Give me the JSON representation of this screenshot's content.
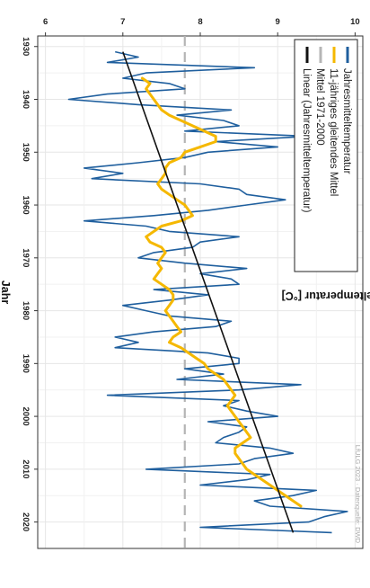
{
  "chart_data": {
    "type": "line",
    "orientation": "rotated-90-clockwise",
    "xlabel": "Jahr",
    "ylabel": "Jahresmitteltemperatur [°C]",
    "source_note": "LfULG 2023 · Datenquelle: DWD",
    "xlim": [
      1928,
      2025
    ],
    "ylim": [
      5.9,
      10.1
    ],
    "x_ticks": [
      1930,
      1940,
      1950,
      1960,
      1970,
      1980,
      1990,
      2000,
      2010,
      2020
    ],
    "y_ticks": [
      6,
      7,
      8,
      9,
      10
    ],
    "grid": true,
    "legend_placement": "top-left",
    "colors": {
      "annual": "#1f5f9e",
      "moving_avg": "#f5b800",
      "reference": "#b5b5b5",
      "trend": "#111111"
    },
    "legend": [
      {
        "key": "annual",
        "label": "Jahresmitteltemperatur"
      },
      {
        "key": "moving_avg",
        "label": "11-jähriges gleitendes Mittel"
      },
      {
        "key": "reference",
        "label": "Mittel 1971-2000"
      },
      {
        "key": "trend",
        "label": "Linear (Jahresmitteltemperatur)"
      }
    ],
    "series_annual": {
      "x": [
        1931,
        1932,
        1933,
        1934,
        1935,
        1936,
        1937,
        1938,
        1939,
        1940,
        1941,
        1942,
        1943,
        1944,
        1945,
        1946,
        1947,
        1948,
        1949,
        1950,
        1951,
        1952,
        1953,
        1954,
        1955,
        1956,
        1957,
        1958,
        1959,
        1960,
        1961,
        1962,
        1963,
        1964,
        1965,
        1966,
        1967,
        1968,
        1969,
        1970,
        1971,
        1972,
        1973,
        1974,
        1975,
        1976,
        1977,
        1978,
        1979,
        1980,
        1981,
        1982,
        1983,
        1984,
        1985,
        1986,
        1987,
        1988,
        1989,
        1990,
        1991,
        1992,
        1993,
        1994,
        1995,
        1996,
        1997,
        1998,
        1999,
        2000,
        2001,
        2002,
        2003,
        2004,
        2005,
        2006,
        2007,
        2008,
        2009,
        2010,
        2011,
        2012,
        2013,
        2014,
        2015,
        2016,
        2017,
        2018,
        2019,
        2020,
        2021,
        2022
      ],
      "values": [
        6.9,
        7.2,
        6.8,
        8.7,
        7.3,
        7.0,
        7.6,
        7.8,
        6.8,
        6.3,
        7.2,
        8.4,
        7.7,
        8.3,
        8.5,
        7.8,
        9.4,
        8.2,
        9.0,
        8.1,
        7.8,
        7.2,
        6.5,
        7.0,
        6.6,
        8.0,
        8.5,
        8.6,
        9.1,
        8.6,
        8.1,
        7.4,
        6.5,
        7.3,
        7.6,
        8.5,
        8.0,
        7.9,
        7.4,
        7.2,
        7.8,
        8.6,
        8.0,
        8.4,
        8.5,
        7.4,
        8.1,
        7.6,
        7.0,
        7.3,
        7.6,
        8.4,
        8.2,
        7.4,
        6.9,
        7.2,
        6.9,
        8.1,
        8.5,
        8.5,
        7.8,
        8.3,
        7.7,
        9.3,
        8.5,
        6.8,
        8.5,
        8.3,
        8.6,
        9.0,
        8.1,
        8.6,
        8.5,
        8.3,
        8.2,
        8.9,
        9.2,
        8.7,
        8.5,
        7.3,
        8.9,
        8.6,
        8.0,
        9.5,
        9.2,
        8.7,
        8.9,
        9.9,
        9.6,
        9.4,
        8.0,
        9.7
      ]
    },
    "series_moving_avg": {
      "x": [
        1936,
        1937,
        1938,
        1939,
        1940,
        1941,
        1942,
        1943,
        1944,
        1945,
        1946,
        1947,
        1948,
        1949,
        1950,
        1951,
        1952,
        1953,
        1954,
        1955,
        1956,
        1957,
        1958,
        1959,
        1960,
        1961,
        1962,
        1963,
        1964,
        1965,
        1966,
        1967,
        1968,
        1969,
        1970,
        1971,
        1972,
        1973,
        1974,
        1975,
        1976,
        1977,
        1978,
        1979,
        1980,
        1981,
        1982,
        1983,
        1984,
        1985,
        1986,
        1987,
        1988,
        1989,
        1990,
        1991,
        1992,
        1993,
        1994,
        1995,
        1996,
        1997,
        1998,
        1999,
        2000,
        2001,
        2002,
        2003,
        2004,
        2005,
        2006,
        2007,
        2008,
        2009,
        2010,
        2011,
        2012,
        2013,
        2014,
        2015,
        2016,
        2017
      ],
      "values": [
        7.25,
        7.35,
        7.3,
        7.35,
        7.4,
        7.45,
        7.5,
        7.6,
        7.75,
        7.9,
        8.05,
        8.2,
        8.2,
        8.0,
        7.8,
        7.75,
        7.6,
        7.55,
        7.55,
        7.5,
        7.45,
        7.5,
        7.6,
        7.7,
        7.8,
        7.85,
        7.9,
        7.75,
        7.5,
        7.4,
        7.3,
        7.35,
        7.5,
        7.55,
        7.5,
        7.45,
        7.5,
        7.45,
        7.4,
        7.5,
        7.6,
        7.65,
        7.65,
        7.6,
        7.55,
        7.6,
        7.65,
        7.7,
        7.75,
        7.65,
        7.6,
        7.75,
        7.85,
        7.95,
        8.05,
        8.1,
        8.2,
        8.3,
        8.35,
        8.4,
        8.45,
        8.4,
        8.35,
        8.4,
        8.45,
        8.5,
        8.55,
        8.6,
        8.65,
        8.55,
        8.45,
        8.45,
        8.5,
        8.55,
        8.6,
        8.7,
        8.8,
        8.9,
        9.0,
        9.1,
        9.2,
        9.3
      ]
    },
    "reference_mean": 7.8,
    "trend": {
      "x": [
        1931,
        2022
      ],
      "values": [
        7.0,
        9.2
      ]
    }
  }
}
